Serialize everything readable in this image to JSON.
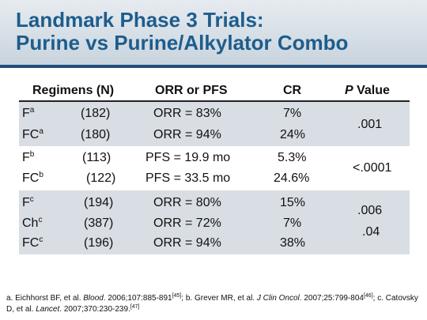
{
  "title": {
    "line1": "Landmark Phase 3 Trials:",
    "line2": "Purine vs Purine/Alkylator Combo"
  },
  "table": {
    "headers": {
      "regimens": "Regimens (N)",
      "outcome": "ORR or PFS",
      "cr": "CR",
      "p_italic": "P",
      "p_rest": " Value"
    },
    "rows": [
      {
        "regimen": "F",
        "sup": "a",
        "n": "(182)",
        "outcome": "ORR = 83%",
        "cr": "7%"
      },
      {
        "regimen": "FC",
        "sup": "a",
        "n": "(180)",
        "outcome": "ORR = 94%",
        "cr": "24%"
      },
      {
        "regimen": "F",
        "sup": "b",
        "n": "(113)",
        "outcome": "PFS = 19.9 mo",
        "cr": "5.3%"
      },
      {
        "regimen": "FC",
        "sup": "b",
        "n": "(122)",
        "outcome": "PFS = 33.5 mo",
        "cr": "24.6%"
      },
      {
        "regimen": "F",
        "sup": "c",
        "n": "(194)",
        "outcome": "ORR = 80%",
        "cr": "15%"
      },
      {
        "regimen": "Ch",
        "sup": "c",
        "n": "(387)",
        "outcome": "ORR = 72%",
        "cr": "7%"
      },
      {
        "regimen": "FC",
        "sup": "c",
        "n": "(196)",
        "outcome": "ORR = 94%",
        "cr": "38%"
      }
    ],
    "p_values": [
      ".001",
      "<.0001",
      ".006",
      ".04"
    ]
  },
  "footnote": {
    "a_pre": "a. Eichhorst BF, et al. ",
    "a_journal": "Blood",
    "a_post": ". 2006;107:885-891",
    "a_ref": "[45]",
    "b_pre": "; b. Grever MR, et al. ",
    "b_journal": "J Clin Oncol",
    "b_post": ". 2007;25:799-804",
    "b_ref": "[46]",
    "c_pre": "; c. Catovsky D, et al. ",
    "c_journal": "Lancet",
    "c_post": ". 2007;370:230-239.",
    "c_ref": "[47]"
  }
}
